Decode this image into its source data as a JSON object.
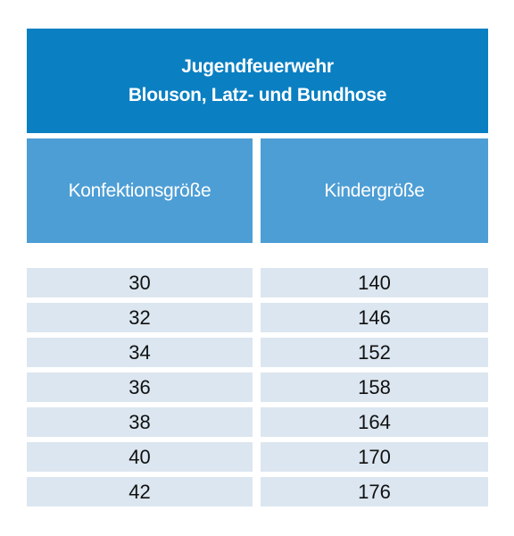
{
  "title": {
    "line1": "Jugendfeuerwehr",
    "line2": "Blouson, Latz- und Bundhose"
  },
  "headers": {
    "left": "Konfektionsgröße",
    "right": "Kindergröße"
  },
  "rows": [
    {
      "konfektion": "30",
      "kinder": "140"
    },
    {
      "konfektion": "32",
      "kinder": "146"
    },
    {
      "konfektion": "34",
      "kinder": "152"
    },
    {
      "konfektion": "36",
      "kinder": "158"
    },
    {
      "konfektion": "38",
      "kinder": "164"
    },
    {
      "konfektion": "40",
      "kinder": "170"
    },
    {
      "konfektion": "42",
      "kinder": "176"
    }
  ],
  "colors": {
    "title_bg": "#0a7fc2",
    "header_bg": "#4d9ed5",
    "row_bg": "#dbe6f0"
  }
}
